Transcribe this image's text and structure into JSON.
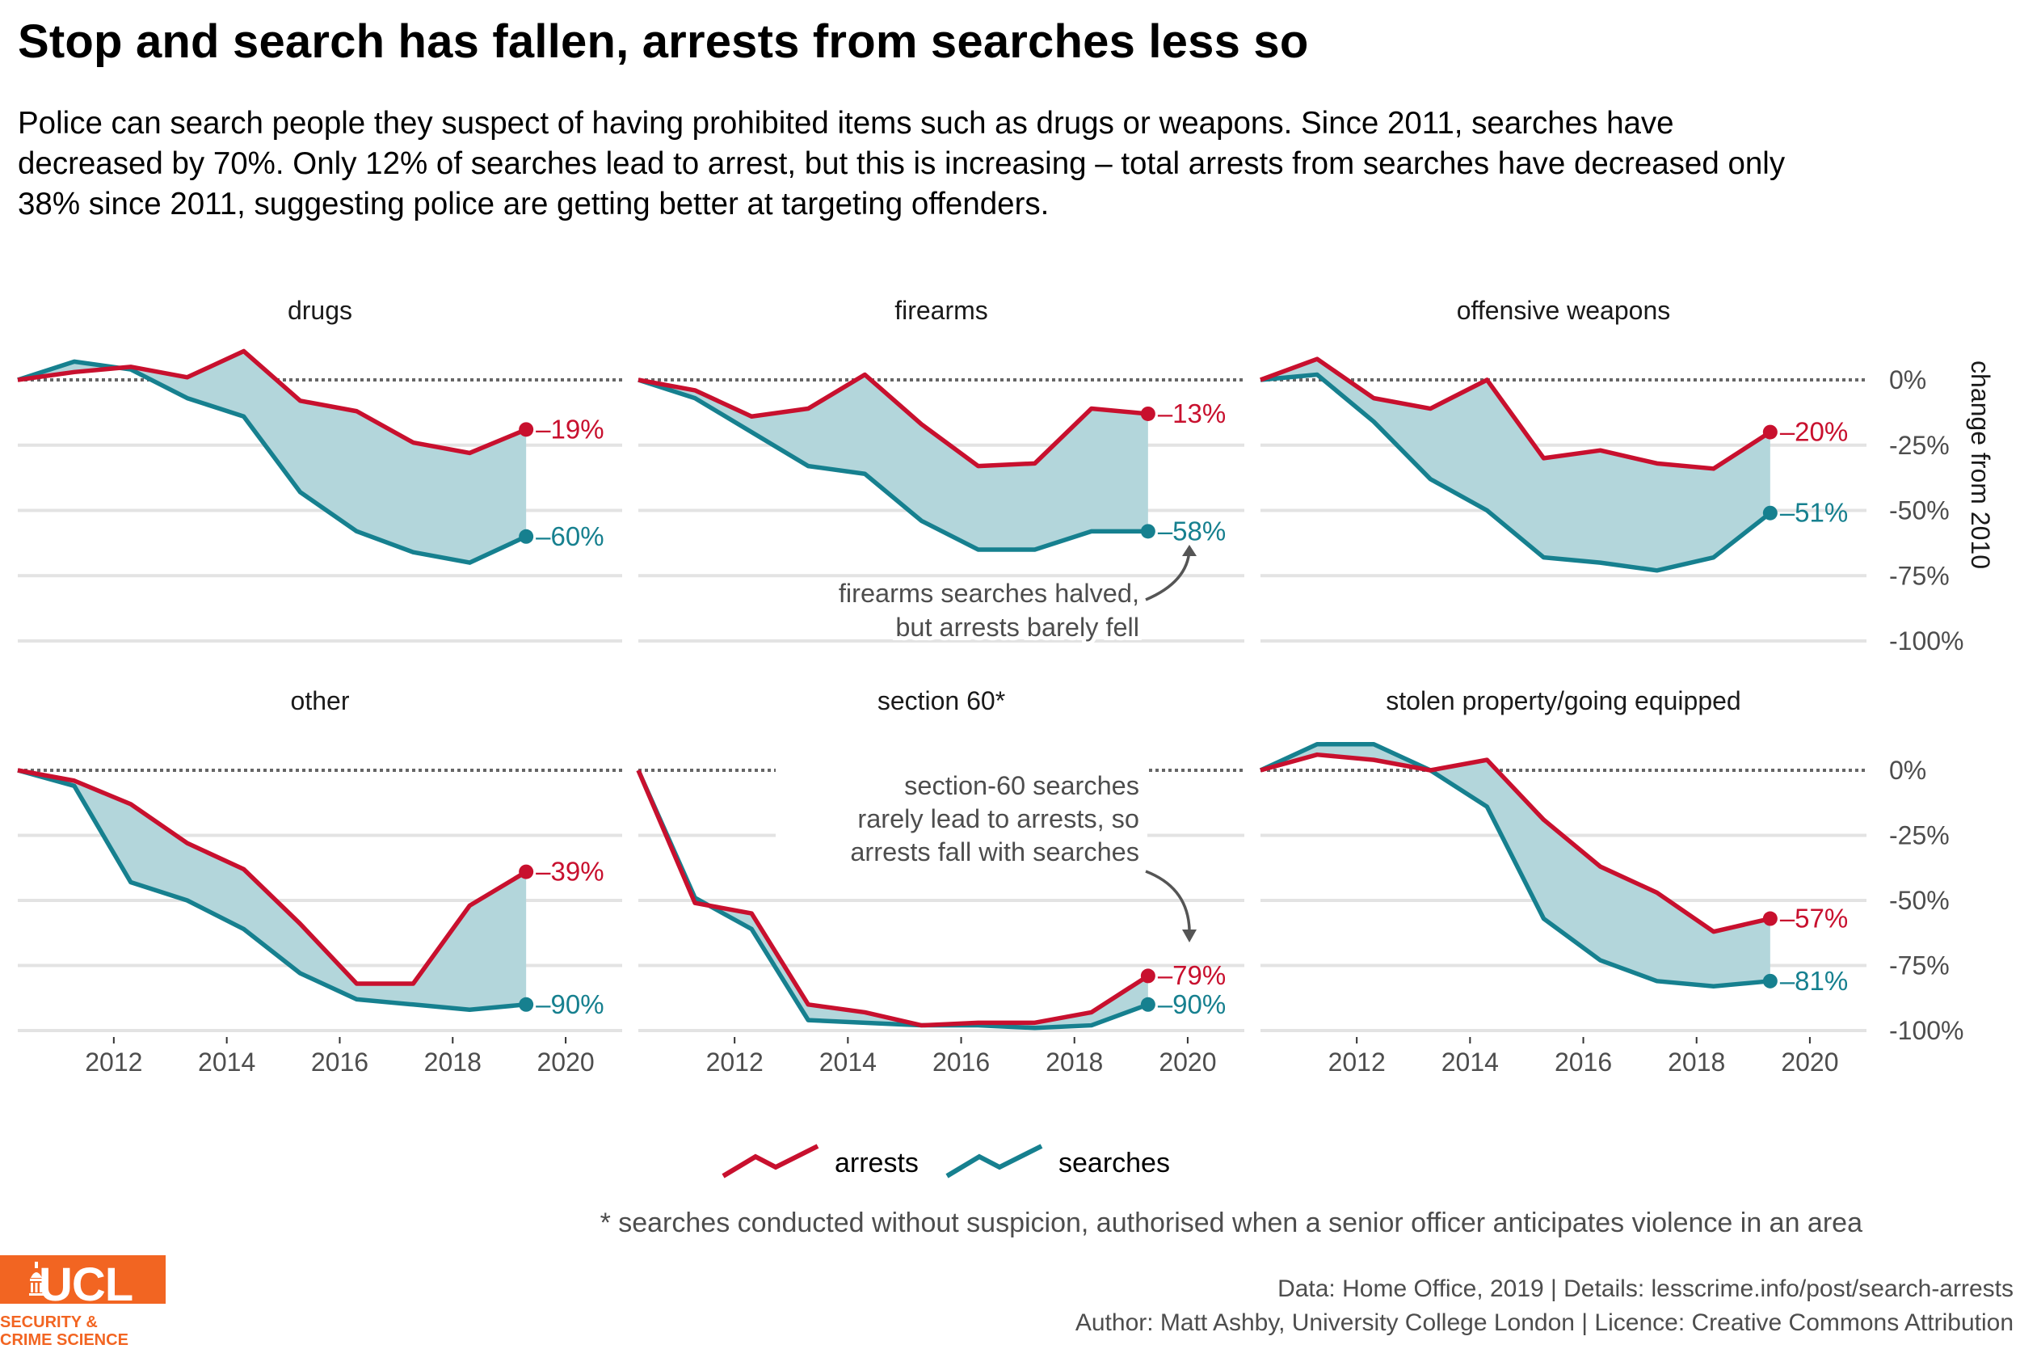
{
  "title": "Stop and search has fallen, arrests from searches less so",
  "subtitle": "Police can search people they suspect of having prohibited items such as drugs or weapons. Since 2011, searches have decreased by 70%. Only 12% of searches lead to arrest, but this is increasing – total arrests from searches have decreased only 38% since 2011, suggesting police are getting better at targeting offenders.",
  "footnote": "* searches conducted without suspicion, authorised when a senior officer anticipates violence in an area",
  "source_line1": "Data: Home Office, 2019 |  Details: lesscrime.info/post/search-arrests",
  "source_line2": "Author: Matt Ashby, University College London |  Licence: Creative Commons Attribution",
  "logo": {
    "text": "UCL",
    "sub1": "SECURITY &",
    "sub2": "CRIME SCIENCE",
    "color": "#f26522"
  },
  "colors": {
    "arrests": "#c8102e",
    "searches": "#16808f",
    "fill": "#b3d6db"
  },
  "chart_data": {
    "type": "line",
    "facets": [
      "drugs",
      "firearms",
      "offensive weapons",
      "other",
      "section 60*",
      "stolen property/going equipped"
    ],
    "x": [
      2010.3,
      2011.3,
      2012.3,
      2013.3,
      2014.3,
      2015.3,
      2016.3,
      2017.3,
      2018.3,
      2019.3
    ],
    "xticks": [
      2012,
      2014,
      2016,
      2018,
      2020
    ],
    "xtick_labels": [
      "2012",
      "2014",
      "2016",
      "2018",
      "2020"
    ],
    "xlim": [
      2010.3,
      2021.0
    ],
    "yticks": [
      0,
      -25,
      -50,
      -75,
      -100
    ],
    "ytick_labels": [
      "0%",
      "-25%",
      "-50%",
      "-75%",
      "-100%"
    ],
    "ylim": [
      -100,
      8
    ],
    "ylabel": "change from 2010",
    "legend": {
      "position": "bottom",
      "items": [
        "arrests",
        "searches"
      ]
    },
    "panels": [
      {
        "name": "drugs",
        "arrests": [
          0,
          3,
          5,
          1,
          11,
          -8,
          -12,
          -24,
          -28,
          -19
        ],
        "searches": [
          0,
          7,
          4,
          -7,
          -14,
          -43,
          -58,
          -66,
          -70,
          -60
        ],
        "arrests_label": "–19%",
        "searches_label": "–60%"
      },
      {
        "name": "firearms",
        "arrests": [
          0,
          -4,
          -14,
          -11,
          2,
          -17,
          -33,
          -32,
          -11,
          -13
        ],
        "searches": [
          0,
          -7,
          -20,
          -33,
          -36,
          -54,
          -65,
          -65,
          -58,
          -58
        ],
        "arrests_label": "–13%",
        "searches_label": "–58%"
      },
      {
        "name": "offensive weapons",
        "arrests": [
          0,
          8,
          -7,
          -11,
          0,
          -30,
          -27,
          -32,
          -34,
          -20
        ],
        "searches": [
          0,
          2,
          -16,
          -38,
          -50,
          -68,
          -70,
          -73,
          -68,
          -51
        ],
        "arrests_label": "–20%",
        "searches_label": "–51%"
      },
      {
        "name": "other",
        "arrests": [
          0,
          -4,
          -13,
          -28,
          -38,
          -59,
          -82,
          -82,
          -52,
          -39
        ],
        "searches": [
          0,
          -6,
          -43,
          -50,
          -61,
          -78,
          -88,
          -90,
          -92,
          -90
        ],
        "arrests_label": "–39%",
        "searches_label": "–90%"
      },
      {
        "name": "section 60*",
        "arrests": [
          0,
          -51,
          -55,
          -90,
          -93,
          -98,
          -97,
          -97,
          -93,
          -79
        ],
        "searches": [
          0,
          -49,
          -61,
          -96,
          -97,
          -98,
          -98,
          -99,
          -98,
          -90
        ],
        "arrests_label": "–79%",
        "searches_label": "–90%"
      },
      {
        "name": "stolen property/going equipped",
        "arrests": [
          0,
          6,
          4,
          0,
          4,
          -19,
          -37,
          -47,
          -62,
          -57
        ],
        "searches": [
          0,
          10,
          10,
          0,
          -14,
          -57,
          -73,
          -81,
          -83,
          -81
        ],
        "arrests_label": "–57%",
        "searches_label": "–81%"
      }
    ],
    "annotations": [
      {
        "panel": "firearms",
        "lines": [
          "firearms searches halved,",
          "but arrests barely fell"
        ]
      },
      {
        "panel": "section 60*",
        "lines": [
          "section-60 searches",
          "rarely lead to arrests, so",
          "arrests fall with searches"
        ]
      }
    ]
  }
}
